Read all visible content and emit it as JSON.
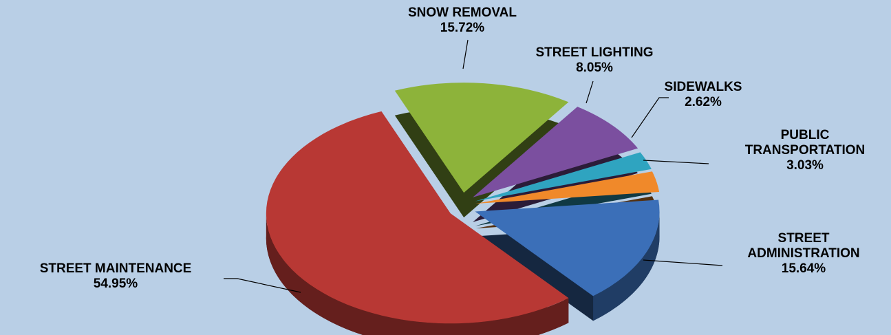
{
  "chart_data": {
    "type": "pie",
    "categories": [
      "SNOW REMOVAL",
      "STREET LIGHTING",
      "SIDEWALKS",
      "PUBLIC TRANSPORTATION",
      "STREET ADMINISTRATION",
      "STREET MAINTENANCE"
    ],
    "values": [
      15.72,
      8.05,
      2.62,
      3.03,
      15.64,
      54.95
    ],
    "value_labels": [
      "15.72%",
      "8.05%",
      "2.62%",
      "3.03%",
      "15.64%",
      "54.95%"
    ],
    "colors": [
      "#8db33a",
      "#7b4f9f",
      "#2fa4c0",
      "#f0892a",
      "#3b6fb8",
      "#b83834"
    ]
  }
}
